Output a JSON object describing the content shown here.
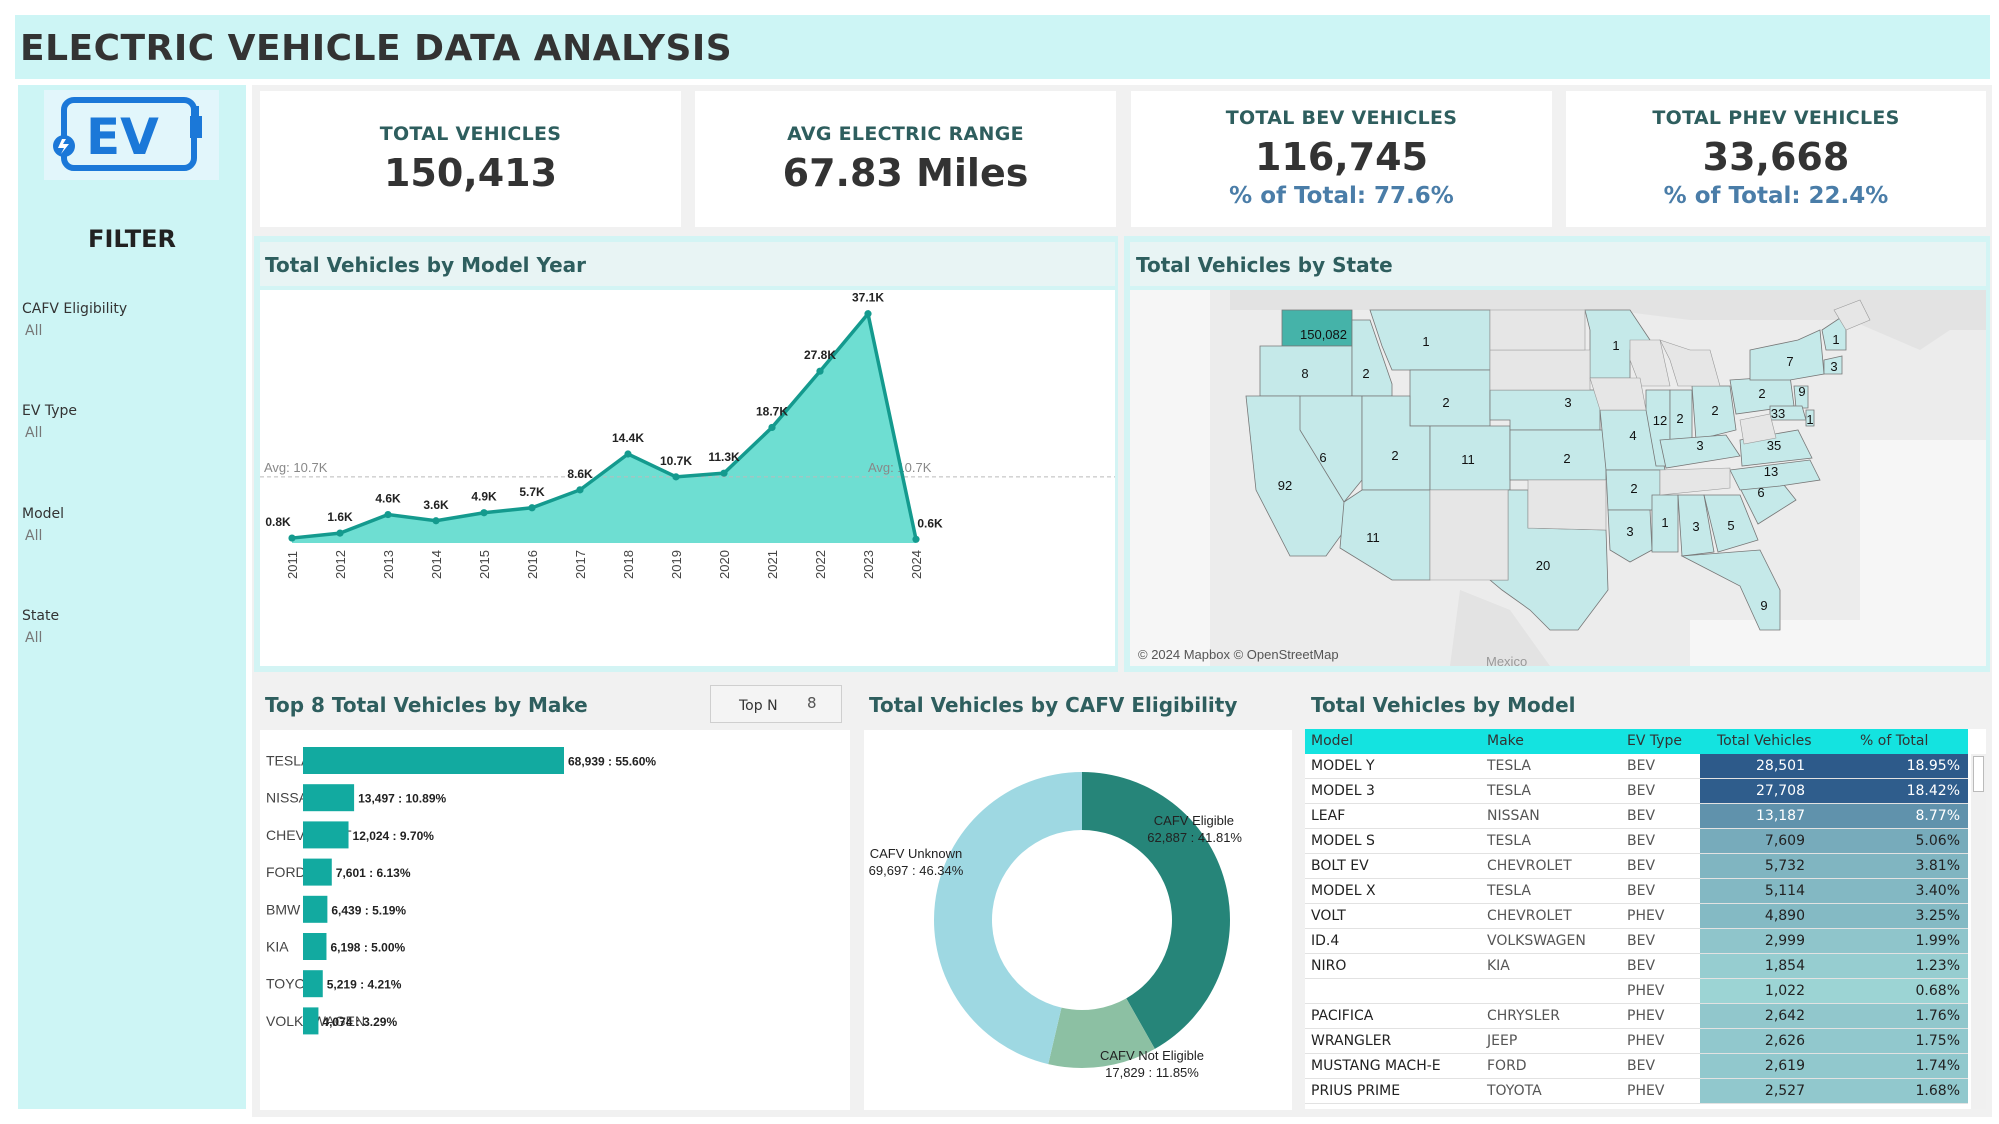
{
  "header": {
    "title": "ELECTRIC VEHICLE DATA ANALYSIS"
  },
  "logo": {
    "text": "EV"
  },
  "filters": {
    "title": "FILTER",
    "items": [
      {
        "label": "CAFV Eligibility",
        "value": "All"
      },
      {
        "label": "EV Type",
        "value": "All"
      },
      {
        "label": "Model",
        "value": "All"
      },
      {
        "label": "State",
        "value": "All"
      }
    ]
  },
  "kpis": [
    {
      "title": "TOTAL VEHICLES",
      "value": "150,413",
      "sub": ""
    },
    {
      "title": "AVG ELECTRIC RANGE",
      "value": "67.83 Miles",
      "sub": ""
    },
    {
      "title": "TOTAL BEV VEHICLES",
      "value": "116,745",
      "sub": "% of Total: 77.6%"
    },
    {
      "title": "TOTAL PHEV VEHICLES",
      "value": "33,668",
      "sub": "% of Total: 22.4%"
    }
  ],
  "panels": {
    "model_year": "Total Vehicles by Model Year",
    "state": "Total Vehicles by State",
    "make": "Top 8 Total Vehicles by Make",
    "cafv": "Total Vehicles by CAFV Eligibility",
    "model": "Total Vehicles by Model"
  },
  "colors": {
    "teal_dark": "#149a8e",
    "teal_fill": "#66dcd0",
    "bar": "#12aaa0",
    "donut_eligible": "#268579",
    "donut_not": "#8cc0a3",
    "donut_unknown": "#9ed8e2",
    "state_highlight": "#45b3a9",
    "state_fill": "#c5e9e9",
    "table_dark": "#2d5a8a",
    "table_head": "#14e3e0"
  },
  "topn": {
    "label": "Top N",
    "value": "8"
  },
  "map": {
    "attribution": "© 2024 Mapbox © OpenStreetMap",
    "country_label": "Mexico"
  },
  "chart_data": [
    {
      "type": "area",
      "title": "Total Vehicles by Model Year",
      "categories": [
        "2011",
        "2012",
        "2013",
        "2014",
        "2015",
        "2016",
        "2017",
        "2018",
        "2019",
        "2020",
        "2021",
        "2022",
        "2023",
        "2024"
      ],
      "values": [
        800,
        1600,
        4600,
        3600,
        4900,
        5700,
        8600,
        14400,
        10700,
        11300,
        18700,
        27800,
        37100,
        600
      ],
      "labels": [
        "0.8K",
        "1.6K",
        "4.6K",
        "3.6K",
        "4.9K",
        "5.7K",
        "8.6K",
        "14.4K",
        "10.7K",
        "11.3K",
        "18.7K",
        "27.8K",
        "37.1K",
        "0.6K"
      ],
      "reference_line": {
        "value": 10700,
        "label": "Avg: 10.7K"
      },
      "ylim": [
        0,
        39000
      ]
    },
    {
      "type": "bar",
      "title": "Top 8 Total Vehicles by Make",
      "categories": [
        "TESLA",
        "NISSAN",
        "CHEVROLET",
        "FORD",
        "BMW",
        "KIA",
        "TOYOTA",
        "VOLKSWAGEN"
      ],
      "values": [
        68939,
        13497,
        12024,
        7601,
        6439,
        6198,
        5219,
        4074
      ],
      "labels": [
        "68,939 : 55.60%",
        "13,497 : 10.89%",
        "12,024 : 9.70%",
        "7,601 : 6.13%",
        "6,439 : 5.19%",
        "6,198 : 5.00%",
        "5,219 : 4.21%",
        "4,074 : 3.29%"
      ]
    },
    {
      "type": "pie",
      "title": "Total Vehicles by CAFV Eligibility",
      "categories": [
        "CAFV Eligible",
        "CAFV Not Eligible",
        "CAFV Unknown"
      ],
      "values": [
        62887,
        17829,
        69697
      ],
      "percents": [
        "41.81%",
        "11.85%",
        "46.34%"
      ],
      "labels": [
        {
          "name": "CAFV Eligible",
          "text": "62,887 : 41.81%"
        },
        {
          "name": "CAFV Not Eligible",
          "text": "17,829 : 11.85%"
        },
        {
          "name": "CAFV Unknown",
          "text": "69,697 : 46.34%"
        }
      ]
    },
    {
      "type": "table",
      "title": "Total Vehicles by Model",
      "columns": [
        "Model",
        "Make",
        "EV Type",
        "Total Vehicles",
        "% of Total"
      ],
      "rows": [
        [
          "MODEL Y",
          "TESLA",
          "BEV",
          "28,501",
          "18.95%"
        ],
        [
          "MODEL 3",
          "TESLA",
          "BEV",
          "27,708",
          "18.42%"
        ],
        [
          "LEAF",
          "NISSAN",
          "BEV",
          "13,187",
          "8.77%"
        ],
        [
          "MODEL S",
          "TESLA",
          "BEV",
          "7,609",
          "5.06%"
        ],
        [
          "BOLT EV",
          "CHEVROLET",
          "BEV",
          "5,732",
          "3.81%"
        ],
        [
          "MODEL X",
          "TESLA",
          "BEV",
          "5,114",
          "3.40%"
        ],
        [
          "VOLT",
          "CHEVROLET",
          "PHEV",
          "4,890",
          "3.25%"
        ],
        [
          "ID.4",
          "VOLKSWAGEN",
          "BEV",
          "2,999",
          "1.99%"
        ],
        [
          "NIRO",
          "KIA",
          "BEV",
          "1,854",
          "1.23%"
        ],
        [
          "",
          "",
          "PHEV",
          "1,022",
          "0.68%"
        ],
        [
          "PACIFICA",
          "CHRYSLER",
          "PHEV",
          "2,642",
          "1.76%"
        ],
        [
          "WRANGLER",
          "JEEP",
          "PHEV",
          "2,626",
          "1.75%"
        ],
        [
          "MUSTANG MACH-E",
          "FORD",
          "BEV",
          "2,619",
          "1.74%"
        ],
        [
          "PRIUS PRIME",
          "TOYOTA",
          "PHEV",
          "2,527",
          "1.68%"
        ]
      ],
      "values": [
        28501,
        27708,
        13187,
        7609,
        5732,
        5114,
        4890,
        2999,
        1854,
        1022,
        2642,
        2626,
        2619,
        2527
      ]
    },
    {
      "type": "map",
      "title": "Total Vehicles by State",
      "states": [
        {
          "state": "WA",
          "value": "150,082"
        },
        {
          "state": "OR",
          "value": "8"
        },
        {
          "state": "CA",
          "value": "92"
        },
        {
          "state": "ID",
          "value": "2"
        },
        {
          "state": "MT",
          "value": "1"
        },
        {
          "state": "WY",
          "value": "2"
        },
        {
          "state": "NV",
          "value": "6"
        },
        {
          "state": "UT",
          "value": "2"
        },
        {
          "state": "CO",
          "value": "11"
        },
        {
          "state": "AZ",
          "value": "11"
        },
        {
          "state": "TX",
          "value": "20"
        },
        {
          "state": "NE",
          "value": "3"
        },
        {
          "state": "KS",
          "value": "2"
        },
        {
          "state": "MN",
          "value": "1"
        },
        {
          "state": "MO",
          "value": "4"
        },
        {
          "state": "AR",
          "value": "2"
        },
        {
          "state": "LA",
          "value": "3"
        },
        {
          "state": "MS",
          "value": "1"
        },
        {
          "state": "AL",
          "value": "3"
        },
        {
          "state": "GA",
          "value": "5"
        },
        {
          "state": "FL",
          "value": "9"
        },
        {
          "state": "SC",
          "value": "6"
        },
        {
          "state": "NC",
          "value": "13"
        },
        {
          "state": "VA",
          "value": "35"
        },
        {
          "state": "IL",
          "value": "12"
        },
        {
          "state": "IN",
          "value": "2"
        },
        {
          "state": "OH",
          "value": "2"
        },
        {
          "state": "KY",
          "value": "3"
        },
        {
          "state": "PA",
          "value": "2"
        },
        {
          "state": "NY",
          "value": "7"
        },
        {
          "state": "NJ",
          "value": "9"
        },
        {
          "state": "MD",
          "value": "33"
        },
        {
          "state": "DE",
          "value": "1"
        },
        {
          "state": "MA",
          "value": "3"
        },
        {
          "state": "NH",
          "value": "1"
        }
      ]
    }
  ]
}
